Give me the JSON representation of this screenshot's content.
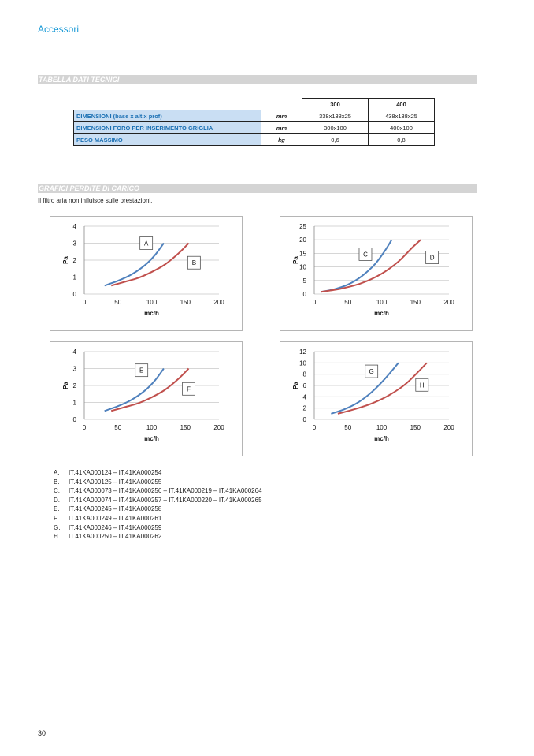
{
  "header": {
    "title": "Accessori"
  },
  "sections": {
    "tech_table_title": "TABELLA DATI TECNICI",
    "charts_title": "GRAFICI PERDITE DI CARICO"
  },
  "table": {
    "columns": [
      "300",
      "400"
    ],
    "rows": [
      {
        "label": "DIMENSIONI (base x alt x prof)",
        "unit": "mm",
        "values": [
          "338x138x25",
          "438x138x25"
        ]
      },
      {
        "label": "DIMENSIONI FORO PER INSERIMENTO GRIGLIA",
        "unit": "mm",
        "values": [
          "300x100",
          "400x100"
        ]
      },
      {
        "label": "PESO MASSIMO",
        "unit": "kg",
        "values": [
          "0,6",
          "0,8"
        ]
      }
    ]
  },
  "intro_text": "Il filtro aria non influisce sulle prestazioni.",
  "chart_data": [
    {
      "type": "line",
      "xlabel": "mc/h",
      "ylabel": "Pa",
      "xlim": [
        0,
        200
      ],
      "ylim": [
        0,
        4
      ],
      "xticks": [
        0,
        50,
        100,
        150,
        200
      ],
      "yticks": [
        0,
        1,
        2,
        3,
        4
      ],
      "grid": true,
      "series": [
        {
          "name": "A",
          "color": "#4f81bd",
          "x": [
            30,
            50,
            70,
            90,
            105,
            118
          ],
          "y": [
            0.5,
            0.78,
            1.15,
            1.7,
            2.3,
            3.0
          ]
        },
        {
          "name": "B",
          "color": "#c0504d",
          "x": [
            40,
            60,
            80,
            100,
            120,
            140,
            155
          ],
          "y": [
            0.5,
            0.72,
            0.95,
            1.3,
            1.75,
            2.4,
            3.0
          ]
        }
      ]
    },
    {
      "type": "line",
      "xlabel": "mc/h",
      "ylabel": "Pa",
      "xlim": [
        0,
        200
      ],
      "ylim": [
        0,
        25
      ],
      "xticks": [
        0,
        50,
        100,
        150,
        200
      ],
      "yticks": [
        0,
        5,
        10,
        15,
        20,
        25
      ],
      "grid": true,
      "series": [
        {
          "name": "C",
          "color": "#4f81bd",
          "x": [
            10,
            30,
            50,
            70,
            90,
            105,
            115
          ],
          "y": [
            0.8,
            1.8,
            3.5,
            6.5,
            11,
            16,
            20
          ]
        },
        {
          "name": "D",
          "color": "#c0504d",
          "x": [
            10,
            40,
            70,
            100,
            125,
            145,
            158
          ],
          "y": [
            0.8,
            2,
            4,
            7.5,
            12,
            17,
            20
          ]
        }
      ]
    },
    {
      "type": "line",
      "xlabel": "mc/h",
      "ylabel": "Pa",
      "xlim": [
        0,
        200
      ],
      "ylim": [
        0,
        4
      ],
      "xticks": [
        0,
        50,
        100,
        150,
        200
      ],
      "yticks": [
        0,
        1,
        2,
        3,
        4
      ],
      "grid": true,
      "series": [
        {
          "name": "E",
          "color": "#4f81bd",
          "x": [
            30,
            50,
            70,
            90,
            105,
            118
          ],
          "y": [
            0.5,
            0.78,
            1.15,
            1.7,
            2.3,
            3.0
          ]
        },
        {
          "name": "F",
          "color": "#c0504d",
          "x": [
            40,
            60,
            80,
            100,
            120,
            140,
            155
          ],
          "y": [
            0.5,
            0.72,
            0.95,
            1.3,
            1.75,
            2.4,
            3.0
          ]
        }
      ]
    },
    {
      "type": "line",
      "xlabel": "mc/h",
      "ylabel": "Pa",
      "xlim": [
        0,
        200
      ],
      "ylim": [
        0,
        12
      ],
      "xticks": [
        0,
        50,
        100,
        150,
        200
      ],
      "yticks": [
        0,
        2,
        4,
        6,
        8,
        10,
        12
      ],
      "grid": true,
      "series": [
        {
          "name": "G",
          "color": "#4f81bd",
          "x": [
            25,
            45,
            65,
            85,
            105,
            125
          ],
          "y": [
            1,
            1.8,
            3,
            4.8,
            7.2,
            10
          ]
        },
        {
          "name": "H",
          "color": "#c0504d",
          "x": [
            35,
            60,
            85,
            110,
            135,
            155,
            167
          ],
          "y": [
            1,
            1.8,
            2.8,
            4.2,
            6.2,
            8.5,
            10
          ]
        }
      ]
    }
  ],
  "legend": [
    {
      "letter": "A.",
      "text": "IT.41KA000124 – IT.41KA000254"
    },
    {
      "letter": "B.",
      "text": "IT.41KA000125 – IT.41KA000255"
    },
    {
      "letter": "C.",
      "text": "IT.41KA000073 – IT.41KA000256 – IT.41KA000219 – IT.41KA000264"
    },
    {
      "letter": "D.",
      "text": "IT.41KA000074 – IT.41KA000257 – IT.41KA000220 – IT.41KA000265"
    },
    {
      "letter": "E.",
      "text": "IT.41KA000245 – IT.41KA000258"
    },
    {
      "letter": "F.",
      "text": "IT.41KA000249 – IT.41KA000261"
    },
    {
      "letter": "G.",
      "text": "IT.41KA000246 – IT.41KA000259"
    },
    {
      "letter": "H.",
      "text": "IT.41KA000250 – IT.41KA000262"
    }
  ],
  "page_number": "30"
}
